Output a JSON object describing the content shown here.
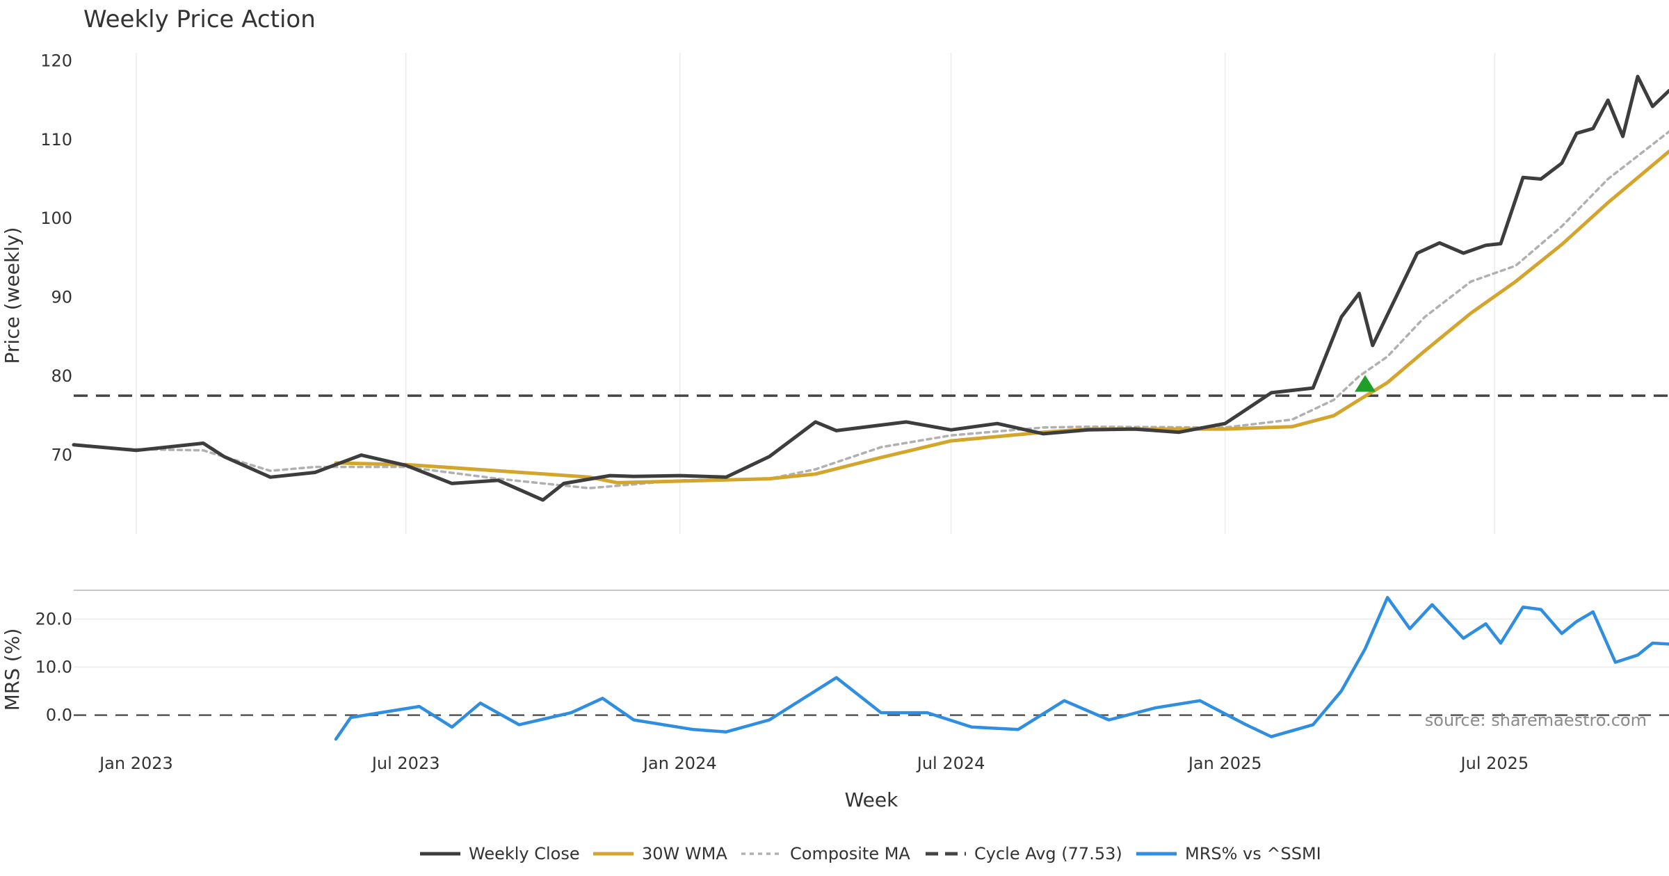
{
  "chart_data": {
    "type": "line",
    "title": "Weekly Price Action",
    "xlabel": "Week",
    "source": "source: sharemaestro.com",
    "x_ticks": [
      {
        "date": "2023-01-01",
        "label": "Jan 2023"
      },
      {
        "date": "2023-07-01",
        "label": "Jul 2023"
      },
      {
        "date": "2024-01-01",
        "label": "Jan 2024"
      },
      {
        "date": "2024-07-01",
        "label": "Jul 2024"
      },
      {
        "date": "2025-01-01",
        "label": "Jan 2025"
      },
      {
        "date": "2025-07-01",
        "label": "Jul 2025"
      }
    ],
    "x_start": "2022-11-20",
    "x_end": "2025-10-26",
    "price_panel": {
      "ylabel": "Price (weekly)",
      "ylim": [
        60,
        121
      ],
      "yticks": [
        70,
        80,
        90,
        100,
        110,
        120
      ],
      "grid": "vertical",
      "cycle_avg": 77.53,
      "series": [
        {
          "name": "Weekly Close",
          "color": "#3d3d3d",
          "style": "solid",
          "x": [
            "2022-11-20",
            "2023-01-01",
            "2023-02-15",
            "2023-03-01",
            "2023-04-01",
            "2023-05-01",
            "2023-06-01",
            "2023-07-01",
            "2023-08-01",
            "2023-09-01",
            "2023-10-01",
            "2023-10-15",
            "2023-11-15",
            "2023-12-01",
            "2024-01-01",
            "2024-02-01",
            "2024-03-01",
            "2024-04-01",
            "2024-04-15",
            "2024-05-15",
            "2024-06-01",
            "2024-07-01",
            "2024-08-01",
            "2024-09-01",
            "2024-10-01",
            "2024-11-01",
            "2024-12-01",
            "2025-01-01",
            "2025-02-01",
            "2025-03-01",
            "2025-03-20",
            "2025-04-01",
            "2025-04-10",
            "2025-04-20",
            "2025-05-10",
            "2025-05-25",
            "2025-06-10",
            "2025-06-25",
            "2025-07-05",
            "2025-07-20",
            "2025-08-01",
            "2025-08-15",
            "2025-08-25",
            "2025-09-05",
            "2025-09-15",
            "2025-09-25",
            "2025-10-05",
            "2025-10-15",
            "2025-10-26"
          ],
          "y": [
            71.3,
            70.6,
            71.5,
            69.8,
            67.2,
            67.8,
            70.0,
            68.7,
            66.4,
            66.8,
            64.3,
            66.4,
            67.4,
            67.3,
            67.4,
            67.2,
            69.8,
            74.2,
            73.1,
            73.8,
            74.2,
            73.2,
            74.0,
            72.7,
            73.2,
            73.3,
            72.9,
            74.0,
            77.9,
            78.5,
            87.5,
            90.5,
            83.9,
            87.8,
            95.6,
            96.9,
            95.6,
            96.6,
            96.8,
            105.2,
            105.0,
            107.0,
            110.8,
            111.4,
            115.0,
            110.4,
            118.0,
            114.2,
            116.2
          ]
        },
        {
          "name": "30W WMA",
          "color": "#d4a52c",
          "style": "solid",
          "x": [
            "2023-05-15",
            "2023-07-01",
            "2023-09-01",
            "2023-11-01",
            "2023-11-20",
            "2024-01-01",
            "2024-03-01",
            "2024-04-01",
            "2024-05-15",
            "2024-07-01",
            "2024-09-01",
            "2024-10-01",
            "2025-01-01",
            "2025-02-15",
            "2025-03-15",
            "2025-04-01",
            "2025-04-20",
            "2025-05-15",
            "2025-06-15",
            "2025-07-15",
            "2025-08-15",
            "2025-09-15",
            "2025-10-26"
          ],
          "y": [
            69.0,
            68.8,
            68.0,
            67.2,
            66.5,
            66.7,
            67.0,
            67.6,
            69.7,
            71.8,
            72.9,
            73.3,
            73.3,
            73.6,
            75.0,
            77.0,
            79.2,
            83.2,
            88.0,
            92.0,
            96.7,
            102.0,
            108.5
          ]
        },
        {
          "name": "Composite MA",
          "color": "#b0b0b0",
          "style": "dotted",
          "x": [
            "2022-12-15",
            "2023-02-15",
            "2023-04-01",
            "2023-05-01",
            "2023-07-01",
            "2023-09-01",
            "2023-11-01",
            "2024-01-01",
            "2024-03-01",
            "2024-04-01",
            "2024-05-15",
            "2024-07-01",
            "2024-09-01",
            "2024-10-01",
            "2025-01-01",
            "2025-02-15",
            "2025-03-15",
            "2025-04-01",
            "2025-04-20",
            "2025-05-15",
            "2025-06-15",
            "2025-07-15",
            "2025-08-15",
            "2025-09-15",
            "2025-10-26"
          ],
          "y": [
            70.8,
            70.6,
            68.0,
            68.5,
            68.5,
            67.0,
            65.8,
            66.8,
            67.0,
            68.2,
            71.0,
            72.5,
            73.5,
            73.6,
            73.5,
            74.5,
            77.0,
            80.0,
            82.5,
            87.5,
            92.0,
            94.0,
            99.0,
            105.0,
            111.0
          ]
        }
      ],
      "markers": [
        {
          "name": "signal-marker",
          "x": "2025-04-05",
          "y": 79.0,
          "shape": "triangle-up",
          "color": "#1f9e2a"
        }
      ]
    },
    "mrs_panel": {
      "ylabel": "MRS (%)",
      "ylim": [
        -6,
        26
      ],
      "yticks": [
        0.0,
        10.0,
        20.0
      ],
      "ytick_labels": [
        "0.0",
        "10.0",
        "20.0"
      ],
      "baseline": 0,
      "series": [
        {
          "name": "MRS% vs ^SSMI",
          "color": "#2f8ee0",
          "style": "solid",
          "x": [
            "2023-05-15",
            "2023-05-25",
            "2023-06-20",
            "2023-07-10",
            "2023-08-01",
            "2023-08-20",
            "2023-09-15",
            "2023-10-20",
            "2023-11-10",
            "2023-12-01",
            "2024-01-10",
            "2024-02-01",
            "2024-03-01",
            "2024-04-15",
            "2024-05-15",
            "2024-06-15",
            "2024-07-15",
            "2024-08-15",
            "2024-09-15",
            "2024-10-15",
            "2024-11-15",
            "2024-12-15",
            "2025-01-15",
            "2025-02-01",
            "2025-03-01",
            "2025-03-20",
            "2025-04-05",
            "2025-04-20",
            "2025-05-05",
            "2025-05-20",
            "2025-06-10",
            "2025-06-25",
            "2025-07-05",
            "2025-07-20",
            "2025-08-01",
            "2025-08-15",
            "2025-08-25",
            "2025-09-05",
            "2025-09-20",
            "2025-10-05",
            "2025-10-15",
            "2025-10-26"
          ],
          "y": [
            -5.0,
            -0.5,
            0.8,
            1.8,
            -2.5,
            2.5,
            -2.0,
            0.5,
            3.5,
            -1.0,
            -3.0,
            -3.5,
            -1.0,
            7.8,
            0.5,
            0.5,
            -2.5,
            -3.0,
            3.0,
            -1.0,
            1.5,
            3.0,
            -2.0,
            -4.5,
            -2.0,
            5.0,
            13.8,
            24.5,
            18.0,
            23.0,
            16.0,
            19.0,
            15.0,
            22.5,
            22.0,
            17.0,
            19.5,
            21.5,
            11.0,
            12.5,
            15.0,
            14.8
          ]
        }
      ]
    },
    "legend": {
      "placement": "bottom-center",
      "entries": [
        {
          "label": "Weekly Close",
          "color": "#3d3d3d",
          "style": "solid"
        },
        {
          "label": "30W WMA",
          "color": "#d4a52c",
          "style": "solid"
        },
        {
          "label": "Composite MA",
          "color": "#b0b0b0",
          "style": "dotted"
        },
        {
          "label": "Cycle Avg (77.53)",
          "color": "#444444",
          "style": "dashed"
        },
        {
          "label": "MRS% vs ^SSMI",
          "color": "#2f8ee0",
          "style": "solid"
        }
      ]
    }
  }
}
